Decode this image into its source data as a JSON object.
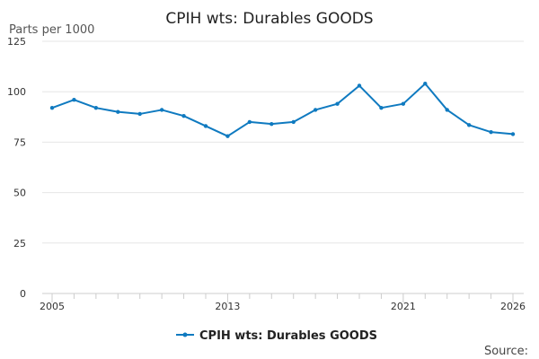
{
  "chart_data": {
    "type": "line",
    "title": "CPIH wts: Durables GOODS",
    "ylabel": "Parts per 1000",
    "xlabel": "",
    "ylim": [
      0,
      125
    ],
    "yticks": [
      0,
      25,
      50,
      75,
      100,
      125
    ],
    "xlim": [
      2005,
      2026
    ],
    "xtick_labels": [
      "2005",
      "2013",
      "2021",
      "2026"
    ],
    "grid": true,
    "legend_position": "bottom",
    "series": [
      {
        "name": "CPIH wts: Durables GOODS",
        "color": "#0f7ac0",
        "x": [
          2005,
          2006,
          2007,
          2008,
          2009,
          2010,
          2011,
          2012,
          2013,
          2014,
          2015,
          2016,
          2017,
          2018,
          2019,
          2020,
          2021,
          2022,
          2023,
          2024,
          2025,
          2026
        ],
        "values": [
          92,
          96,
          92,
          90,
          89,
          91,
          88,
          83,
          78,
          85,
          84,
          85,
          91,
          94,
          103,
          92,
          94,
          104,
          91,
          83.5,
          80,
          79
        ]
      }
    ]
  },
  "footer": {
    "source_label": "Source:"
  }
}
